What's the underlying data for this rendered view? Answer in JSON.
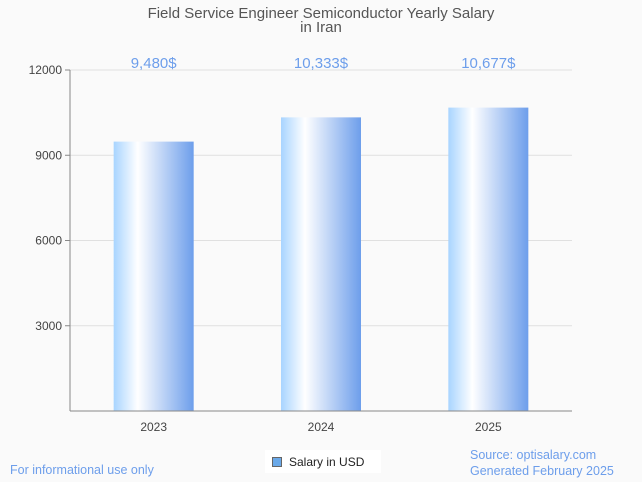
{
  "chart_data": {
    "type": "bar",
    "title": "Field Service Engineer Semiconductor Yearly Salary",
    "title_line2": "in Iran",
    "categories": [
      "2023",
      "2024",
      "2025"
    ],
    "values": [
      9480,
      10333,
      10677
    ],
    "data_labels": [
      "9,480$",
      "10,333$",
      "10,677$"
    ],
    "yticks": [
      3000,
      6000,
      9000,
      12000
    ],
    "ylim": [
      0,
      12000
    ],
    "xlabel": "",
    "ylabel": "",
    "grid": true,
    "legend": {
      "label": "Salary in USD",
      "placement": "bottom-center",
      "color": "#6aa9e9"
    },
    "colors": {
      "bar_light": "#a8d4ff",
      "bar_dark": "#6d9eeb",
      "label": "#6d9eeb"
    }
  },
  "footer": {
    "disclaimer": "For informational use only",
    "source": "Source: optisalary.com",
    "generated": "Generated February 2025"
  }
}
